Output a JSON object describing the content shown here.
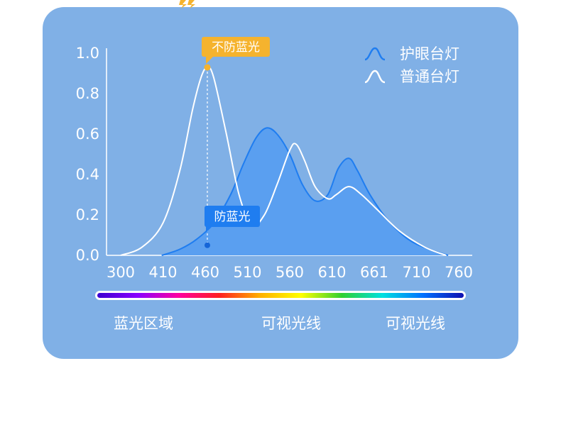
{
  "chart_data": {
    "type": "area",
    "x_tick_labels": [
      "300",
      "410",
      "460",
      "510",
      "560",
      "610",
      "661",
      "710",
      "760"
    ],
    "y_ticks": [
      0.0,
      0.2,
      0.4,
      0.6,
      0.8,
      1.0
    ],
    "y_tick_labels": [
      "0.0",
      "0.2",
      "0.4",
      "0.6",
      "0.8",
      "1.0"
    ],
    "ylim": [
      0,
      1
    ],
    "legend_placement": "top-right",
    "series": [
      {
        "name": "护眼台灯",
        "color": "#1f7df0",
        "fill": "#5a9ff0",
        "points": [
          [
            0.97,
            0.0
          ],
          [
            1.4,
            0.03
          ],
          [
            1.8,
            0.08
          ],
          [
            2.2,
            0.16
          ],
          [
            2.6,
            0.3
          ],
          [
            2.9,
            0.45
          ],
          [
            3.2,
            0.58
          ],
          [
            3.45,
            0.63
          ],
          [
            3.7,
            0.6
          ],
          [
            4.0,
            0.5
          ],
          [
            4.3,
            0.35
          ],
          [
            4.6,
            0.27
          ],
          [
            4.9,
            0.3
          ],
          [
            5.15,
            0.43
          ],
          [
            5.4,
            0.48
          ],
          [
            5.6,
            0.42
          ],
          [
            5.9,
            0.3
          ],
          [
            6.3,
            0.18
          ],
          [
            6.8,
            0.08
          ],
          [
            7.3,
            0.03
          ],
          [
            7.75,
            0.0
          ]
        ]
      },
      {
        "name": "普通台灯",
        "color": "#ffffff",
        "fill": "none",
        "points": [
          [
            0.0,
            0.0
          ],
          [
            0.5,
            0.04
          ],
          [
            1.0,
            0.16
          ],
          [
            1.4,
            0.42
          ],
          [
            1.7,
            0.72
          ],
          [
            1.9,
            0.88
          ],
          [
            2.05,
            0.93
          ],
          [
            2.2,
            0.88
          ],
          [
            2.5,
            0.6
          ],
          [
            2.8,
            0.3
          ],
          [
            3.1,
            0.15
          ],
          [
            3.4,
            0.2
          ],
          [
            3.7,
            0.35
          ],
          [
            4.0,
            0.52
          ],
          [
            4.15,
            0.55
          ],
          [
            4.35,
            0.47
          ],
          [
            4.6,
            0.34
          ],
          [
            4.9,
            0.28
          ],
          [
            5.1,
            0.3
          ],
          [
            5.4,
            0.34
          ],
          [
            5.7,
            0.3
          ],
          [
            6.1,
            0.22
          ],
          [
            6.6,
            0.12
          ],
          [
            7.2,
            0.04
          ],
          [
            7.7,
            0.0
          ]
        ]
      }
    ],
    "annotations": [
      {
        "text": "不防蓝光",
        "style": "orange",
        "x": 2.05,
        "y": 0.93
      },
      {
        "text": "防蓝光",
        "style": "blue",
        "x": 2.05,
        "y": 0.05
      }
    ],
    "band_labels": [
      "蓝光区域",
      "可视光线",
      "可视光线"
    ],
    "spectrum_colors": [
      "#3c00d0",
      "#8a00ff",
      "#ff00a0",
      "#ff2020",
      "#ffb000",
      "#ffff00",
      "#30d030",
      "#00e0e0",
      "#0070ff",
      "#1010b0"
    ]
  }
}
